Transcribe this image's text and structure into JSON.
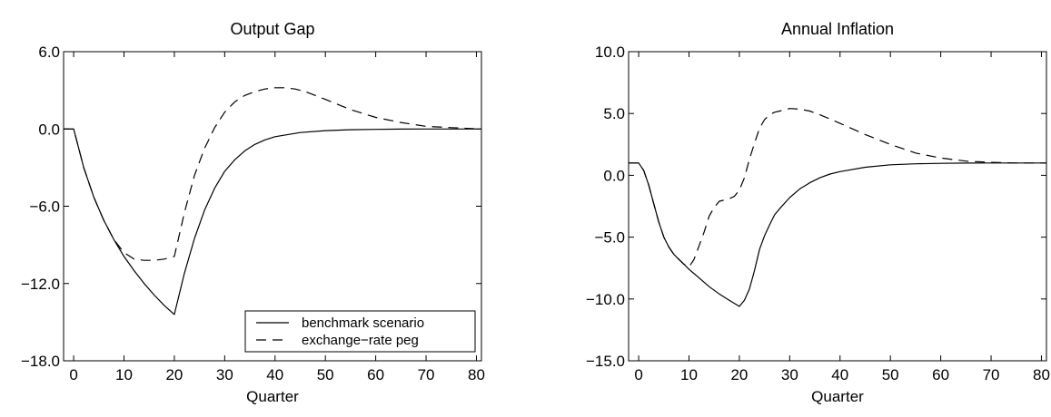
{
  "chart_data": [
    {
      "type": "line",
      "title": "Output Gap",
      "xlabel": "Quarter",
      "ylabel": "",
      "xlim": [
        -2,
        81
      ],
      "ylim": [
        -18,
        6
      ],
      "x_ticks": [
        0,
        10,
        20,
        30,
        40,
        50,
        60,
        70,
        80
      ],
      "x_tick_labels": [
        "0",
        "10",
        "20",
        "30",
        "40",
        "50",
        "60",
        "70",
        "80"
      ],
      "y_ticks": [
        -18,
        -12,
        -6,
        0,
        6
      ],
      "y_tick_labels": [
        "−18.0",
        "−12.0",
        "−6.0",
        "0.0",
        "6.0"
      ],
      "grid": false,
      "legend": {
        "placement": "bottom-right",
        "entries": [
          {
            "label": "benchmark scenario",
            "style": "solid"
          },
          {
            "label": "exchange−rate peg",
            "style": "dashed"
          }
        ]
      },
      "series": [
        {
          "name": "benchmark scenario",
          "style": "solid",
          "x": [
            -2,
            0,
            2,
            4,
            6,
            8,
            10,
            12,
            14,
            16,
            18,
            20,
            22,
            24,
            26,
            28,
            30,
            32,
            34,
            36,
            38,
            40,
            45,
            50,
            55,
            60,
            65,
            70,
            75,
            80,
            81
          ],
          "y": [
            0,
            0,
            -3.0,
            -5.3,
            -7.1,
            -8.6,
            -9.9,
            -11.0,
            -12.0,
            -12.9,
            -13.7,
            -14.4,
            -11.2,
            -8.5,
            -6.3,
            -4.6,
            -3.3,
            -2.4,
            -1.7,
            -1.2,
            -0.85,
            -0.6,
            -0.28,
            -0.13,
            -0.06,
            -0.03,
            -0.01,
            0,
            0,
            0,
            0
          ]
        },
        {
          "name": "exchange−rate peg",
          "style": "dashed",
          "x": [
            -2,
            0,
            2,
            4,
            6,
            8,
            10,
            12,
            14,
            16,
            18,
            20,
            22,
            24,
            26,
            28,
            30,
            32,
            34,
            36,
            38,
            40,
            42,
            44,
            46,
            48,
            50,
            55,
            60,
            65,
            70,
            75,
            80,
            81
          ],
          "y": [
            0,
            0,
            -3.0,
            -5.3,
            -7.1,
            -8.6,
            -9.6,
            -10.1,
            -10.2,
            -10.2,
            -10.1,
            -9.9,
            -6.5,
            -3.6,
            -1.5,
            0.1,
            1.3,
            2.1,
            2.6,
            2.9,
            3.1,
            3.2,
            3.2,
            3.1,
            2.9,
            2.6,
            2.3,
            1.5,
            0.9,
            0.5,
            0.2,
            0.1,
            0.02,
            0
          ]
        }
      ]
    },
    {
      "type": "line",
      "title": "Annual Inflation",
      "xlabel": "Quarter",
      "ylabel": "",
      "xlim": [
        -2,
        81
      ],
      "ylim": [
        -15,
        10
      ],
      "x_ticks": [
        0,
        10,
        20,
        30,
        40,
        50,
        60,
        70,
        80
      ],
      "x_tick_labels": [
        "0",
        "10",
        "20",
        "30",
        "40",
        "50",
        "60",
        "70",
        "80"
      ],
      "y_ticks": [
        -15,
        -10,
        -5,
        0,
        5,
        10
      ],
      "y_tick_labels": [
        "−15.0",
        "−10.0",
        "−5.0",
        "0.0",
        "5.0",
        "10.0"
      ],
      "grid": false,
      "series": [
        {
          "name": "benchmark scenario",
          "style": "solid",
          "x": [
            -2,
            0,
            1,
            2,
            3,
            4,
            5,
            6,
            7,
            8,
            9,
            10,
            12,
            14,
            16,
            18,
            20,
            21,
            22,
            23,
            24,
            25,
            26,
            27,
            28,
            30,
            32,
            34,
            36,
            38,
            40,
            45,
            50,
            55,
            60,
            65,
            70,
            75,
            80,
            81
          ],
          "y": [
            1.0,
            1.0,
            0.4,
            -0.8,
            -2.3,
            -3.8,
            -5.0,
            -5.8,
            -6.4,
            -6.8,
            -7.2,
            -7.6,
            -8.3,
            -9.0,
            -9.6,
            -10.1,
            -10.6,
            -10.1,
            -9.2,
            -7.7,
            -6.0,
            -4.9,
            -4.0,
            -3.2,
            -2.7,
            -1.8,
            -1.1,
            -0.6,
            -0.2,
            0.1,
            0.3,
            0.65,
            0.85,
            0.93,
            0.97,
            0.99,
            1.0,
            1.0,
            1.0,
            1.0
          ]
        },
        {
          "name": "exchange−rate peg",
          "style": "dashed",
          "x": [
            -2,
            0,
            1,
            2,
            3,
            4,
            5,
            6,
            7,
            8,
            9,
            10,
            11,
            12,
            13,
            14,
            15,
            16,
            17,
            18,
            19,
            20,
            21,
            22,
            23,
            24,
            25,
            26,
            27,
            28,
            30,
            32,
            34,
            36,
            38,
            40,
            45,
            50,
            55,
            60,
            65,
            70,
            75,
            80,
            81
          ],
          "y": [
            1.0,
            1.0,
            0.4,
            -0.8,
            -2.3,
            -3.8,
            -5.0,
            -5.8,
            -6.4,
            -6.8,
            -7.2,
            -7.4,
            -6.8,
            -5.7,
            -4.6,
            -3.3,
            -2.6,
            -2.1,
            -2.0,
            -1.9,
            -1.7,
            -1.2,
            -0.2,
            1.3,
            2.6,
            3.8,
            4.5,
            4.9,
            5.1,
            5.2,
            5.4,
            5.35,
            5.2,
            4.9,
            4.55,
            4.2,
            3.3,
            2.5,
            1.8,
            1.4,
            1.15,
            1.05,
            1.0,
            1.0,
            1.0
          ]
        }
      ]
    }
  ]
}
